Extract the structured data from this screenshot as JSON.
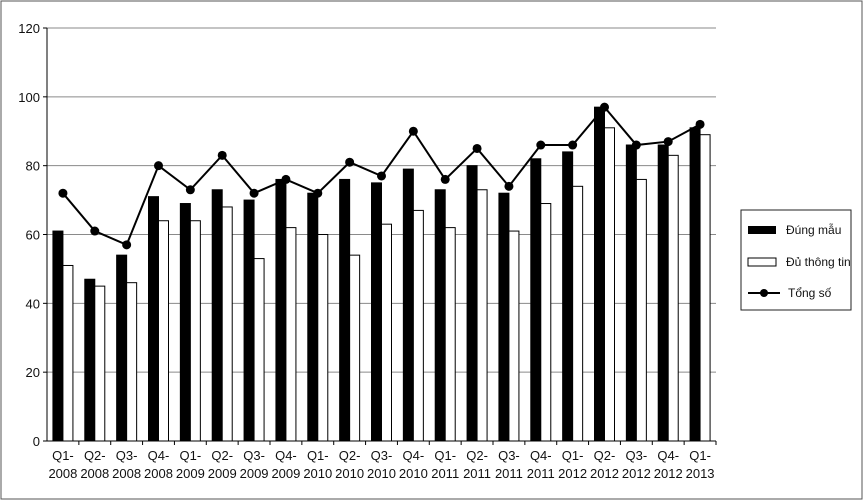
{
  "chart_data": {
    "type": "bar",
    "categories": [
      [
        "Q1-",
        "2008"
      ],
      [
        "Q2-",
        "2008"
      ],
      [
        "Q3-",
        "2008"
      ],
      [
        "Q4-",
        "2008"
      ],
      [
        "Q1-",
        "2009"
      ],
      [
        "Q2-",
        "2009"
      ],
      [
        "Q3-",
        "2009"
      ],
      [
        "Q4-",
        "2009"
      ],
      [
        "Q1-",
        "2010"
      ],
      [
        "Q2-",
        "2010"
      ],
      [
        "Q3-",
        "2010"
      ],
      [
        "Q4-",
        "2010"
      ],
      [
        "Q1-",
        "2011"
      ],
      [
        "Q2-",
        "2011"
      ],
      [
        "Q3-",
        "2011"
      ],
      [
        "Q4-",
        "2011"
      ],
      [
        "Q1-",
        "2012"
      ],
      [
        "Q2-",
        "2012"
      ],
      [
        "Q3-",
        "2012"
      ],
      [
        "Q4-",
        "2012"
      ],
      [
        "Q1-",
        "2013"
      ]
    ],
    "series": [
      {
        "name": "Đúng mẫu",
        "kind": "bar",
        "color": "#000000",
        "values": [
          61,
          47,
          54,
          71,
          69,
          73,
          70,
          76,
          72,
          76,
          75,
          79,
          73,
          80,
          72,
          82,
          84,
          97,
          86,
          86,
          91
        ]
      },
      {
        "name": "Đủ thông tin",
        "kind": "bar",
        "color": "#ffffff",
        "values": [
          51,
          45,
          46,
          64,
          64,
          68,
          53,
          62,
          60,
          54,
          63,
          67,
          62,
          73,
          61,
          69,
          74,
          91,
          76,
          83,
          89
        ]
      },
      {
        "name": "Tổng số",
        "kind": "line",
        "color": "#000000",
        "values": [
          72,
          61,
          57,
          80,
          73,
          83,
          72,
          76,
          72,
          81,
          77,
          90,
          76,
          85,
          74,
          86,
          86,
          97,
          86,
          87,
          92
        ]
      }
    ],
    "y_ticks": [
      0,
      20,
      40,
      60,
      80,
      100,
      120
    ],
    "ylim": [
      0,
      120
    ],
    "grid": true,
    "legend_position": "right"
  }
}
